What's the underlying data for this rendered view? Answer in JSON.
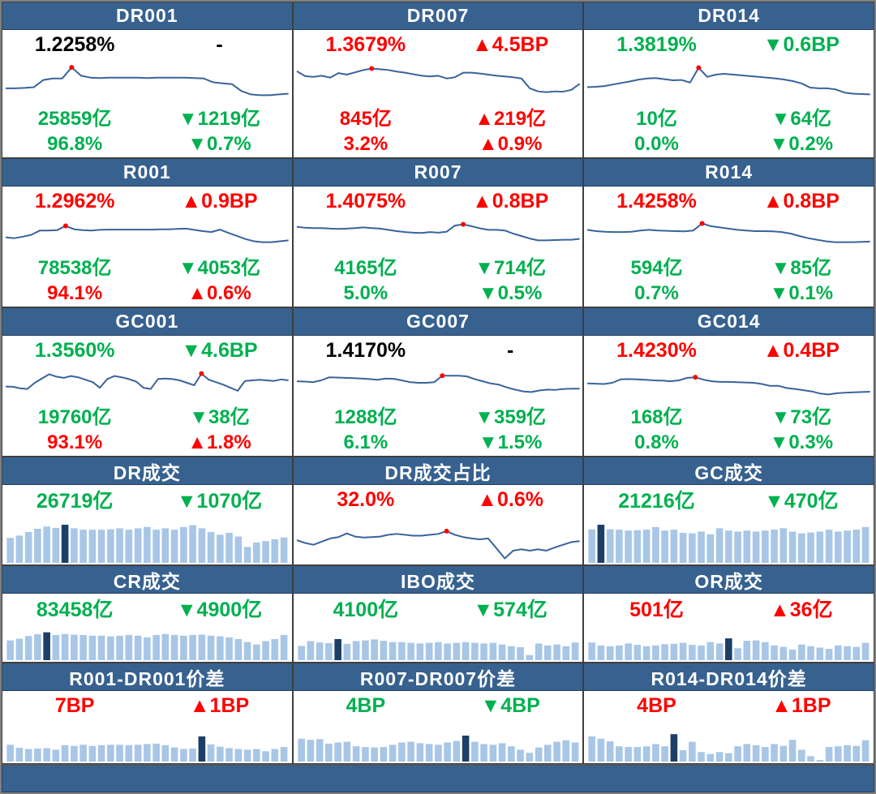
{
  "colors": {
    "header_bg": "#37618F",
    "panel_bg": "#FFFFFF",
    "up": "#FF0000",
    "down": "#00B050",
    "neutral": "#000000",
    "line": "#3A639B",
    "marker": "#FF0000",
    "bar": "#A8C6E6",
    "bar_highlight": "#1B3F66",
    "border": "#3F3F3F"
  },
  "panels": [
    {
      "title": "DR001",
      "rate": {
        "text": "1.2258%",
        "color": "neutral"
      },
      "rate_chg": {
        "text": "-",
        "color": "neutral"
      },
      "volume": {
        "text": "25859亿",
        "color": "down"
      },
      "volume_chg": {
        "text": "▼1219亿",
        "color": "down"
      },
      "pct": {
        "text": "96.8%",
        "color": "down"
      },
      "pct_chg": {
        "text": "▼0.7%",
        "color": "down"
      }
    },
    {
      "title": "DR007",
      "rate": {
        "text": "1.3679%",
        "color": "up"
      },
      "rate_chg": {
        "text": "▲4.5BP",
        "color": "up"
      },
      "volume": {
        "text": "845亿",
        "color": "up"
      },
      "volume_chg": {
        "text": "▲219亿",
        "color": "up"
      },
      "pct": {
        "text": "3.2%",
        "color": "up"
      },
      "pct_chg": {
        "text": "▲0.9%",
        "color": "up"
      }
    },
    {
      "title": "DR014",
      "rate": {
        "text": "1.3819%",
        "color": "down"
      },
      "rate_chg": {
        "text": "▼0.6BP",
        "color": "down"
      },
      "volume": {
        "text": "10亿",
        "color": "down"
      },
      "volume_chg": {
        "text": "▼64亿",
        "color": "down"
      },
      "pct": {
        "text": "0.0%",
        "color": "down"
      },
      "pct_chg": {
        "text": "▼0.2%",
        "color": "down"
      }
    },
    {
      "title": "R001",
      "rate": {
        "text": "1.2962%",
        "color": "up"
      },
      "rate_chg": {
        "text": "▲0.9BP",
        "color": "up"
      },
      "volume": {
        "text": "78538亿",
        "color": "down"
      },
      "volume_chg": {
        "text": "▼4053亿",
        "color": "down"
      },
      "pct": {
        "text": "94.1%",
        "color": "up"
      },
      "pct_chg": {
        "text": "▲0.6%",
        "color": "up"
      }
    },
    {
      "title": "R007",
      "rate": {
        "text": "1.4075%",
        "color": "up"
      },
      "rate_chg": {
        "text": "▲0.8BP",
        "color": "up"
      },
      "volume": {
        "text": "4165亿",
        "color": "down"
      },
      "volume_chg": {
        "text": "▼714亿",
        "color": "down"
      },
      "pct": {
        "text": "5.0%",
        "color": "down"
      },
      "pct_chg": {
        "text": "▼0.5%",
        "color": "down"
      }
    },
    {
      "title": "R014",
      "rate": {
        "text": "1.4258%",
        "color": "up"
      },
      "rate_chg": {
        "text": "▲0.8BP",
        "color": "up"
      },
      "volume": {
        "text": "594亿",
        "color": "down"
      },
      "volume_chg": {
        "text": "▼85亿",
        "color": "down"
      },
      "pct": {
        "text": "0.7%",
        "color": "down"
      },
      "pct_chg": {
        "text": "▼0.1%",
        "color": "down"
      }
    },
    {
      "title": "GC001",
      "rate": {
        "text": "1.3560%",
        "color": "down"
      },
      "rate_chg": {
        "text": "▼4.6BP",
        "color": "down"
      },
      "volume": {
        "text": "19760亿",
        "color": "down"
      },
      "volume_chg": {
        "text": "▼38亿",
        "color": "down"
      },
      "pct": {
        "text": "93.1%",
        "color": "up"
      },
      "pct_chg": {
        "text": "▲1.8%",
        "color": "up"
      }
    },
    {
      "title": "GC007",
      "rate": {
        "text": "1.4170%",
        "color": "neutral"
      },
      "rate_chg": {
        "text": "-",
        "color": "neutral"
      },
      "volume": {
        "text": "1288亿",
        "color": "down"
      },
      "volume_chg": {
        "text": "▼359亿",
        "color": "down"
      },
      "pct": {
        "text": "6.1%",
        "color": "down"
      },
      "pct_chg": {
        "text": "▼1.5%",
        "color": "down"
      }
    },
    {
      "title": "GC014",
      "rate": {
        "text": "1.4230%",
        "color": "up"
      },
      "rate_chg": {
        "text": "▲0.4BP",
        "color": "up"
      },
      "volume": {
        "text": "168亿",
        "color": "down"
      },
      "volume_chg": {
        "text": "▼73亿",
        "color": "down"
      },
      "pct": {
        "text": "0.8%",
        "color": "down"
      },
      "pct_chg": {
        "text": "▼0.3%",
        "color": "down"
      }
    },
    {
      "title": "DR成交",
      "rate": {
        "text": "26719亿",
        "color": "down"
      },
      "rate_chg": {
        "text": "▼1070亿",
        "color": "down"
      }
    },
    {
      "title": "DR成交占比",
      "rate": {
        "text": "32.0%",
        "color": "up"
      },
      "rate_chg": {
        "text": "▲0.6%",
        "color": "up"
      }
    },
    {
      "title": "GC成交",
      "rate": {
        "text": "21216亿",
        "color": "down"
      },
      "rate_chg": {
        "text": "▼470亿",
        "color": "down"
      }
    },
    {
      "title": "CR成交",
      "rate": {
        "text": "83458亿",
        "color": "down"
      },
      "rate_chg": {
        "text": "▼4900亿",
        "color": "down"
      }
    },
    {
      "title": "IBO成交",
      "rate": {
        "text": "4100亿",
        "color": "down"
      },
      "rate_chg": {
        "text": "▼574亿",
        "color": "down"
      }
    },
    {
      "title": "OR成交",
      "rate": {
        "text": "501亿",
        "color": "up"
      },
      "rate_chg": {
        "text": "▲36亿",
        "color": "up"
      }
    },
    {
      "title": "R001-DR001价差",
      "rate": {
        "text": "7BP",
        "color": "up"
      },
      "rate_chg": {
        "text": "▲1BP",
        "color": "up"
      }
    },
    {
      "title": "R007-DR007价差",
      "rate": {
        "text": "4BP",
        "color": "down"
      },
      "rate_chg": {
        "text": "▼4BP",
        "color": "down"
      }
    },
    {
      "title": "R014-DR014价差",
      "rate": {
        "text": "4BP",
        "color": "up"
      },
      "rate_chg": {
        "text": "▲1BP",
        "color": "up"
      }
    }
  ],
  "chart_data": [
    {
      "type": "line",
      "title": "DR001",
      "values_scale": "normalized 0-100, axes hidden (sparkline)",
      "values": [
        30,
        30,
        31,
        33,
        52,
        56,
        56,
        85,
        63,
        58,
        57,
        58,
        58,
        58,
        58,
        57,
        58,
        58,
        58,
        58,
        57,
        56,
        46,
        43,
        41,
        23,
        14,
        12,
        12,
        14,
        16
      ],
      "marker_index": 7
    },
    {
      "type": "line",
      "title": "DR007",
      "values_scale": "normalized 0-100, axes hidden (sparkline)",
      "values": [
        75,
        62,
        60,
        63,
        58,
        70,
        66,
        72,
        78,
        82,
        80,
        78,
        74,
        71,
        67,
        63,
        61,
        63,
        56,
        59,
        71,
        71,
        69,
        66,
        63,
        61,
        59,
        56,
        30,
        22,
        20,
        22,
        21,
        26,
        42
      ],
      "marker_index": 9
    },
    {
      "type": "line",
      "title": "DR014",
      "values_scale": "normalized 0-100, axes hidden (sparkline)",
      "values": [
        33,
        34,
        36,
        40,
        44,
        48,
        53,
        56,
        57,
        54,
        51,
        52,
        45,
        84,
        60,
        66,
        68,
        66,
        64,
        62,
        60,
        58,
        56,
        53,
        49,
        43,
        32,
        30,
        30,
        27,
        19,
        16,
        15,
        14
      ],
      "marker_index": 13
    },
    {
      "type": "line",
      "title": "R001",
      "values_scale": "normalized 0-100, axes hidden (sparkline)",
      "values": [
        38,
        35,
        40,
        46,
        60,
        60,
        61,
        75,
        64,
        61,
        60,
        62,
        63,
        63,
        63,
        63,
        63,
        63,
        64,
        64,
        65,
        66,
        62,
        58,
        55,
        63,
        52,
        42,
        32,
        25,
        22,
        22,
        25,
        28
      ],
      "marker_index": 7
    },
    {
      "type": "line",
      "title": "R007",
      "values_scale": "normalized 0-100, axes hidden (sparkline)",
      "values": [
        72,
        69,
        68,
        68,
        66,
        65,
        66,
        68,
        70,
        68,
        66,
        62,
        58,
        55,
        53,
        52,
        55,
        53,
        56,
        76,
        80,
        74,
        67,
        62,
        62,
        60,
        50,
        42,
        34,
        28,
        28,
        29,
        30,
        30,
        33
      ],
      "marker_index": 20
    },
    {
      "type": "line",
      "title": "R014",
      "values_scale": "normalized 0-100, axes hidden (sparkline)",
      "values": [
        62,
        58,
        56,
        55,
        55,
        56,
        60,
        62,
        60,
        59,
        58,
        57,
        60,
        83,
        74,
        70,
        66,
        62,
        60,
        58,
        58,
        57,
        55,
        50,
        42,
        35,
        30,
        25,
        22,
        22,
        22,
        23,
        24
      ],
      "marker_index": 13
    },
    {
      "type": "line",
      "title": "GC001",
      "values_scale": "normalized 0-100, axes hidden (sparkline)",
      "values": [
        38,
        37,
        32,
        30,
        50,
        64,
        78,
        70,
        66,
        72,
        68,
        60,
        52,
        34,
        62,
        72,
        68,
        62,
        54,
        34,
        30,
        62,
        64,
        62,
        58,
        50,
        42,
        80,
        60,
        52,
        44,
        34,
        24,
        56,
        58,
        60,
        58,
        56,
        61,
        58
      ],
      "marker_index": 27
    },
    {
      "type": "line",
      "title": "GC007",
      "values_scale": "normalized 0-100, axes hidden (sparkline)",
      "values": [
        55,
        54,
        52,
        58,
        68,
        67,
        66,
        65,
        64,
        62,
        60,
        64,
        63,
        58,
        52,
        50,
        50,
        52,
        73,
        73,
        73,
        71,
        62,
        55,
        48,
        44,
        35,
        28,
        22,
        20,
        25,
        28,
        27,
        30,
        31,
        31
      ],
      "marker_index": 18
    },
    {
      "type": "line",
      "title": "GC014",
      "values_scale": "normalized 0-100, axes hidden (sparkline)",
      "values": [
        48,
        47,
        46,
        50,
        61,
        62,
        61,
        60,
        58,
        57,
        55,
        58,
        66,
        68,
        60,
        55,
        53,
        53,
        52,
        51,
        50,
        46,
        40,
        40,
        33,
        30,
        26,
        22,
        15,
        12,
        16,
        18,
        19,
        20,
        21
      ],
      "marker_index": 13
    },
    {
      "type": "bar",
      "title": "DR成交",
      "values_scale": "normalized 0-100, axes hidden (sparkline)",
      "values": [
        55,
        60,
        68,
        75,
        80,
        77,
        84,
        76,
        73,
        73,
        73,
        74,
        76,
        73,
        76,
        79,
        73,
        76,
        73,
        79,
        83,
        76,
        68,
        62,
        66,
        58,
        35,
        45,
        48,
        52,
        56
      ],
      "highlight_index": 6
    },
    {
      "type": "line",
      "title": "DR成交占比",
      "values_scale": "normalized 0-100, axes hidden (sparkline)",
      "values": [
        48,
        42,
        38,
        45,
        52,
        55,
        63,
        56,
        54,
        55,
        56,
        60,
        62,
        60,
        58,
        58,
        60,
        62,
        68,
        60,
        55,
        52,
        50,
        52,
        30,
        8,
        25,
        28,
        25,
        28,
        25,
        32,
        38,
        44,
        46
      ],
      "marker_index": 18
    },
    {
      "type": "bar",
      "title": "GC成交",
      "values_scale": "normalized 0-100, axes hidden (sparkline)",
      "values": [
        74,
        84,
        74,
        73,
        71,
        72,
        73,
        79,
        71,
        73,
        66,
        65,
        69,
        63,
        76,
        71,
        69,
        71,
        69,
        71,
        73,
        76,
        69,
        65,
        67,
        69,
        73,
        69,
        71,
        73,
        79
      ],
      "highlight_index": 1
    },
    {
      "type": "bar",
      "title": "CR成交",
      "values_scale": "normalized 0-100, axes hidden (sparkline)",
      "values": [
        58,
        63,
        71,
        76,
        82,
        74,
        77,
        75,
        74,
        72,
        72,
        70,
        72,
        74,
        72,
        67,
        74,
        77,
        74,
        72,
        74,
        75,
        72,
        70,
        67,
        62,
        53,
        46,
        56,
        62,
        74
      ],
      "highlight_index": 4
    },
    {
      "type": "bar",
      "title": "IBO成交",
      "values_scale": "normalized 0-100, axes hidden (sparkline)",
      "values": [
        42,
        56,
        52,
        50,
        62,
        48,
        56,
        58,
        61,
        57,
        53,
        53,
        51,
        49,
        51,
        53,
        49,
        51,
        53,
        51,
        49,
        51,
        46,
        41,
        38,
        15,
        49,
        43,
        46,
        41,
        52
      ],
      "highlight_index": 4
    },
    {
      "type": "bar",
      "title": "OR成交",
      "values_scale": "normalized 0-100, axes hidden (sparkline)",
      "values": [
        52,
        43,
        41,
        43,
        49,
        45,
        41,
        43,
        47,
        48,
        51,
        45,
        43,
        53,
        49,
        64,
        35,
        57,
        58,
        53,
        43,
        39,
        31,
        46,
        41,
        37,
        33,
        43,
        41,
        39,
        51
      ],
      "highlight_index": 15
    },
    {
      "type": "bar",
      "title": "R001-DR001价差",
      "values_scale": "normalized 0-100, axes hidden (sparkline)",
      "values": [
        44,
        36,
        33,
        34,
        35,
        31,
        43,
        41,
        44,
        41,
        43,
        44,
        44,
        43,
        44,
        46,
        47,
        43,
        37,
        33,
        34,
        66,
        45,
        39,
        35,
        33,
        31,
        33,
        27,
        33,
        38
      ],
      "highlight_index": 21
    },
    {
      "type": "bar",
      "title": "R007-DR007价差",
      "values_scale": "normalized 0-100, axes hidden (sparkline)",
      "values": [
        60,
        57,
        59,
        47,
        50,
        52,
        40,
        38,
        37,
        38,
        44,
        50,
        52,
        48,
        46,
        44,
        50,
        54,
        68,
        52,
        46,
        44,
        48,
        40,
        31,
        23,
        37,
        44,
        52,
        56,
        50
      ],
      "highlight_index": 18
    },
    {
      "type": "bar",
      "title": "R014-DR014价差",
      "values_scale": "normalized 0-100, axes hidden (sparkline)",
      "values": [
        66,
        60,
        53,
        40,
        38,
        38,
        40,
        46,
        40,
        72,
        30,
        52,
        25,
        20,
        25,
        22,
        40,
        46,
        43,
        38,
        46,
        41,
        57,
        31,
        14,
        4,
        38,
        40,
        43,
        41,
        56
      ],
      "highlight_index": 9
    }
  ]
}
